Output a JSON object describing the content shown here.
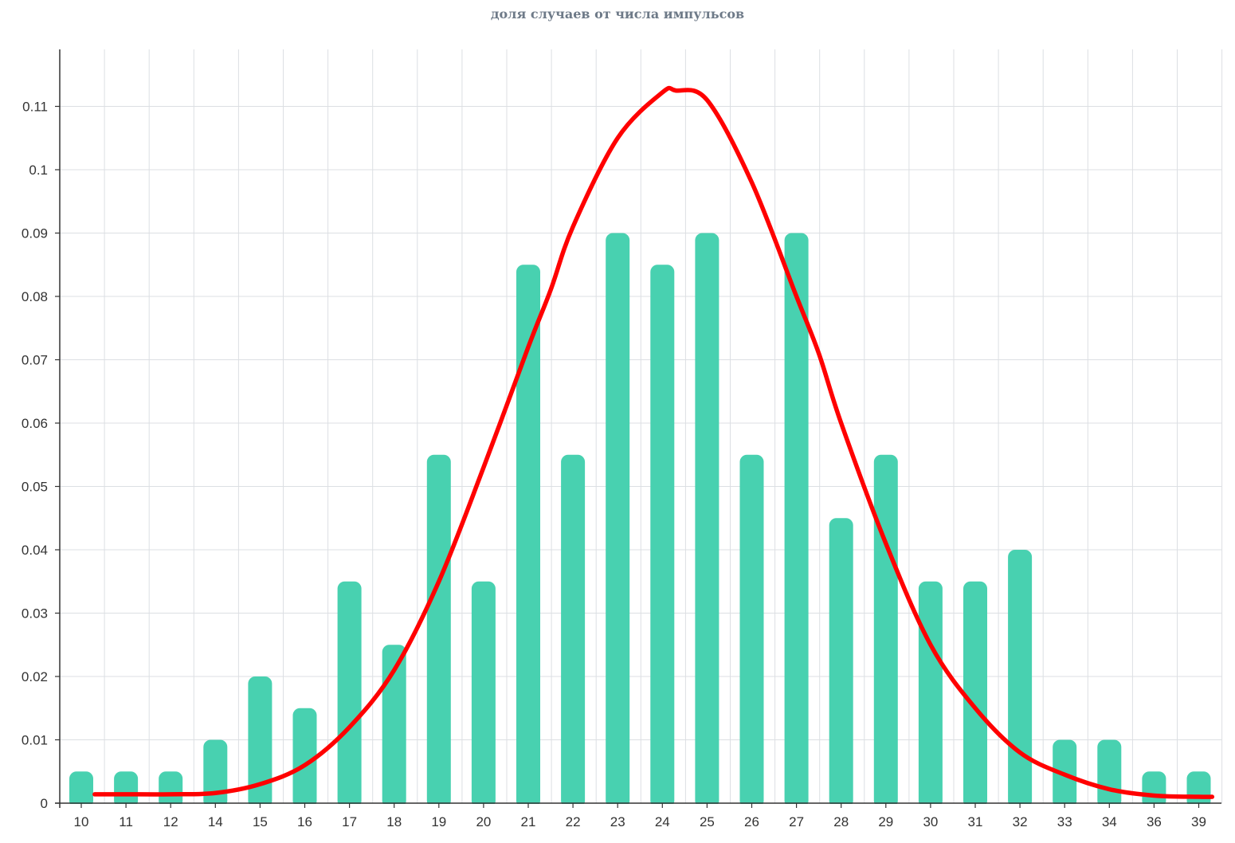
{
  "colors": {
    "bar": "#48d1b0",
    "curve": "#ff0000",
    "grid": "#dcdfe3",
    "axis": "#333333"
  },
  "chart_data": {
    "type": "bar",
    "title": "доля случаев от числа импульсов",
    "xlabel": "",
    "ylabel": "",
    "grid": true,
    "categories": [
      "10",
      "11",
      "12",
      "14",
      "15",
      "16",
      "17",
      "18",
      "19",
      "20",
      "21",
      "22",
      "23",
      "24",
      "25",
      "26",
      "27",
      "28",
      "29",
      "30",
      "31",
      "32",
      "33",
      "34",
      "36",
      "39"
    ],
    "values": [
      0.005,
      0.005,
      0.005,
      0.01,
      0.02,
      0.015,
      0.035,
      0.025,
      0.055,
      0.035,
      0.085,
      0.055,
      0.09,
      0.085,
      0.09,
      0.055,
      0.09,
      0.045,
      0.055,
      0.035,
      0.035,
      0.04,
      0.01,
      0.01,
      0.005,
      0.005
    ],
    "ylim": [
      0,
      0.12
    ],
    "yticks": [
      "0",
      "0.01",
      "0.02",
      "0.03",
      "0.04",
      "0.05",
      "0.06",
      "0.07",
      "0.08",
      "0.09",
      "0.1",
      "0.11"
    ],
    "overlay_curve": {
      "type": "line",
      "category_positions": [
        0.3,
        1,
        2,
        3,
        4,
        5,
        6,
        7,
        8,
        9,
        10,
        10.5,
        11,
        12,
        13,
        13.3,
        14,
        15,
        16,
        16.5,
        17,
        18,
        19,
        20,
        21,
        22,
        23,
        24,
        25,
        25.3
      ],
      "values": [
        0.0014,
        0.0014,
        0.0014,
        0.0016,
        0.003,
        0.006,
        0.012,
        0.021,
        0.035,
        0.053,
        0.072,
        0.081,
        0.091,
        0.105,
        0.1122,
        0.1125,
        0.111,
        0.098,
        0.08,
        0.071,
        0.06,
        0.041,
        0.025,
        0.015,
        0.008,
        0.0045,
        0.0022,
        0.0012,
        0.001,
        0.001
      ]
    }
  }
}
